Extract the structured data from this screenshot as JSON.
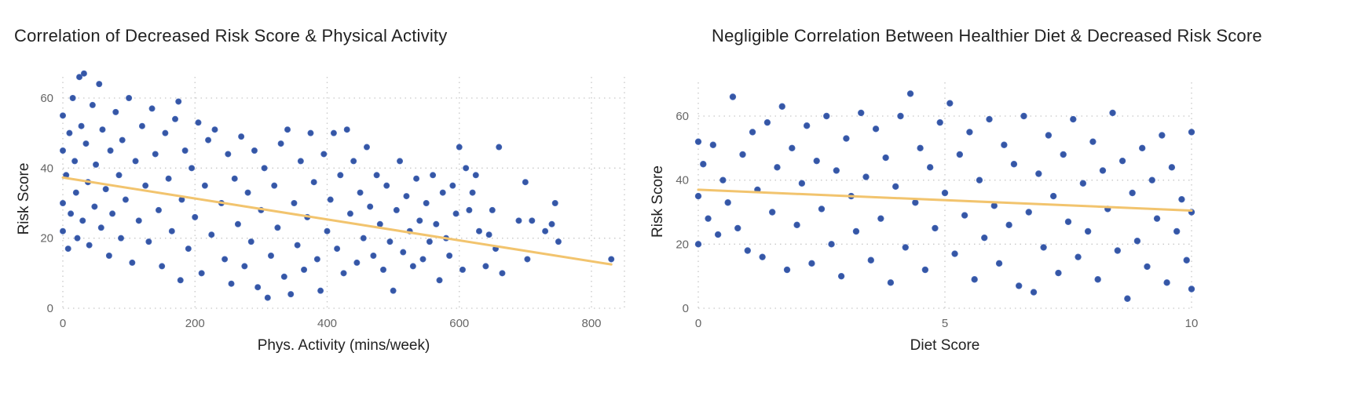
{
  "chart_data": [
    {
      "type": "scatter",
      "title": "Correlation of Decreased Risk Score & Physical Activity",
      "xlabel": "Phys. Activity (mins/week)",
      "ylabel": "Risk Score",
      "xlim": [
        0,
        830
      ],
      "ylim": [
        0,
        70
      ],
      "xticks": [
        0,
        200,
        400,
        600,
        800
      ],
      "yticks": [
        0,
        20,
        40,
        60
      ],
      "grid": true,
      "point_color": "#3556a5",
      "trend_color": "#f2c46e",
      "trendline": [
        [
          0,
          37.3
        ],
        [
          830,
          12.5
        ]
      ],
      "points": [
        [
          0,
          45
        ],
        [
          0,
          30
        ],
        [
          0,
          22
        ],
        [
          0,
          55
        ],
        [
          5,
          38
        ],
        [
          8,
          17
        ],
        [
          10,
          50
        ],
        [
          12,
          27
        ],
        [
          15,
          60
        ],
        [
          18,
          42
        ],
        [
          20,
          33
        ],
        [
          22,
          20
        ],
        [
          25,
          66
        ],
        [
          28,
          52
        ],
        [
          30,
          25
        ],
        [
          32,
          67
        ],
        [
          35,
          47
        ],
        [
          38,
          36
        ],
        [
          40,
          18
        ],
        [
          45,
          58
        ],
        [
          48,
          29
        ],
        [
          50,
          41
        ],
        [
          55,
          64
        ],
        [
          58,
          23
        ],
        [
          60,
          51
        ],
        [
          65,
          34
        ],
        [
          70,
          15
        ],
        [
          72,
          45
        ],
        [
          75,
          27
        ],
        [
          80,
          56
        ],
        [
          85,
          38
        ],
        [
          88,
          20
        ],
        [
          90,
          48
        ],
        [
          95,
          31
        ],
        [
          100,
          60
        ],
        [
          105,
          13
        ],
        [
          110,
          42
        ],
        [
          115,
          25
        ],
        [
          120,
          52
        ],
        [
          125,
          35
        ],
        [
          130,
          19
        ],
        [
          135,
          57
        ],
        [
          140,
          44
        ],
        [
          145,
          28
        ],
        [
          150,
          12
        ],
        [
          155,
          50
        ],
        [
          160,
          37
        ],
        [
          165,
          22
        ],
        [
          170,
          54
        ],
        [
          175,
          59
        ],
        [
          178,
          8
        ],
        [
          180,
          31
        ],
        [
          185,
          45
        ],
        [
          190,
          17
        ],
        [
          195,
          40
        ],
        [
          200,
          26
        ],
        [
          205,
          53
        ],
        [
          210,
          10
        ],
        [
          215,
          35
        ],
        [
          220,
          48
        ],
        [
          225,
          21
        ],
        [
          230,
          51
        ],
        [
          240,
          30
        ],
        [
          245,
          14
        ],
        [
          250,
          44
        ],
        [
          255,
          7
        ],
        [
          260,
          37
        ],
        [
          265,
          24
        ],
        [
          270,
          49
        ],
        [
          275,
          12
        ],
        [
          280,
          33
        ],
        [
          285,
          19
        ],
        [
          290,
          45
        ],
        [
          295,
          6
        ],
        [
          300,
          28
        ],
        [
          305,
          40
        ],
        [
          310,
          3
        ],
        [
          315,
          15
        ],
        [
          320,
          35
        ],
        [
          325,
          23
        ],
        [
          330,
          47
        ],
        [
          335,
          9
        ],
        [
          340,
          51
        ],
        [
          345,
          4
        ],
        [
          350,
          30
        ],
        [
          355,
          18
        ],
        [
          360,
          42
        ],
        [
          365,
          11
        ],
        [
          370,
          26
        ],
        [
          375,
          50
        ],
        [
          380,
          36
        ],
        [
          385,
          14
        ],
        [
          390,
          5
        ],
        [
          395,
          44
        ],
        [
          400,
          22
        ],
        [
          405,
          31
        ],
        [
          410,
          50
        ],
        [
          415,
          17
        ],
        [
          420,
          38
        ],
        [
          425,
          10
        ],
        [
          430,
          51
        ],
        [
          435,
          27
        ],
        [
          440,
          42
        ],
        [
          445,
          13
        ],
        [
          450,
          33
        ],
        [
          455,
          20
        ],
        [
          460,
          46
        ],
        [
          465,
          29
        ],
        [
          470,
          15
        ],
        [
          475,
          38
        ],
        [
          480,
          24
        ],
        [
          485,
          11
        ],
        [
          490,
          35
        ],
        [
          495,
          19
        ],
        [
          500,
          5
        ],
        [
          505,
          28
        ],
        [
          510,
          42
        ],
        [
          515,
          16
        ],
        [
          520,
          32
        ],
        [
          525,
          22
        ],
        [
          530,
          12
        ],
        [
          535,
          37
        ],
        [
          540,
          25
        ],
        [
          545,
          14
        ],
        [
          550,
          30
        ],
        [
          555,
          19
        ],
        [
          560,
          38
        ],
        [
          565,
          24
        ],
        [
          570,
          8
        ],
        [
          575,
          33
        ],
        [
          580,
          20
        ],
        [
          585,
          15
        ],
        [
          590,
          35
        ],
        [
          595,
          27
        ],
        [
          600,
          46
        ],
        [
          605,
          11
        ],
        [
          610,
          40
        ],
        [
          615,
          28
        ],
        [
          620,
          33
        ],
        [
          625,
          38
        ],
        [
          630,
          22
        ],
        [
          640,
          12
        ],
        [
          645,
          21
        ],
        [
          650,
          28
        ],
        [
          655,
          17
        ],
        [
          660,
          46
        ],
        [
          665,
          10
        ],
        [
          690,
          25
        ],
        [
          700,
          36
        ],
        [
          703,
          14
        ],
        [
          710,
          25
        ],
        [
          730,
          22
        ],
        [
          740,
          24
        ],
        [
          745,
          30
        ],
        [
          750,
          19
        ],
        [
          830,
          14
        ]
      ]
    },
    {
      "type": "scatter",
      "title": "Negligible Correlation Between Healthier Diet & Decreased Risk Score",
      "xlabel": "Diet Score",
      "ylabel": "Risk Score",
      "xlim": [
        0,
        10
      ],
      "ylim": [
        0,
        70
      ],
      "xticks": [
        0,
        5,
        10
      ],
      "yticks": [
        0,
        20,
        40,
        60
      ],
      "grid": true,
      "point_color": "#3556a5",
      "trend_color": "#f2c46e",
      "trendline": [
        [
          0,
          37
        ],
        [
          10,
          30.5
        ]
      ],
      "points": [
        [
          0,
          52
        ],
        [
          0,
          20
        ],
        [
          0,
          35
        ],
        [
          0.1,
          45
        ],
        [
          0.2,
          28
        ],
        [
          0.3,
          51
        ],
        [
          0.4,
          23
        ],
        [
          0.5,
          40
        ],
        [
          0.6,
          33
        ],
        [
          0.7,
          66
        ],
        [
          0.8,
          25
        ],
        [
          0.9,
          48
        ],
        [
          1.0,
          18
        ],
        [
          1.1,
          55
        ],
        [
          1.2,
          37
        ],
        [
          1.3,
          16
        ],
        [
          1.4,
          58
        ],
        [
          1.5,
          30
        ],
        [
          1.6,
          44
        ],
        [
          1.7,
          63
        ],
        [
          1.8,
          12
        ],
        [
          1.9,
          50
        ],
        [
          2.0,
          26
        ],
        [
          2.1,
          39
        ],
        [
          2.2,
          57
        ],
        [
          2.3,
          14
        ],
        [
          2.4,
          46
        ],
        [
          2.5,
          31
        ],
        [
          2.6,
          60
        ],
        [
          2.7,
          20
        ],
        [
          2.8,
          43
        ],
        [
          2.9,
          10
        ],
        [
          3.0,
          53
        ],
        [
          3.1,
          35
        ],
        [
          3.2,
          24
        ],
        [
          3.3,
          61
        ],
        [
          3.4,
          41
        ],
        [
          3.5,
          15
        ],
        [
          3.6,
          56
        ],
        [
          3.7,
          28
        ],
        [
          3.8,
          47
        ],
        [
          3.9,
          8
        ],
        [
          4.0,
          38
        ],
        [
          4.1,
          60
        ],
        [
          4.2,
          19
        ],
        [
          4.3,
          67
        ],
        [
          4.4,
          33
        ],
        [
          4.5,
          50
        ],
        [
          4.6,
          12
        ],
        [
          4.7,
          44
        ],
        [
          4.8,
          25
        ],
        [
          4.9,
          58
        ],
        [
          5.0,
          36
        ],
        [
          5.1,
          64
        ],
        [
          5.2,
          17
        ],
        [
          5.3,
          48
        ],
        [
          5.4,
          29
        ],
        [
          5.5,
          55
        ],
        [
          5.6,
          9
        ],
        [
          5.7,
          40
        ],
        [
          5.8,
          22
        ],
        [
          5.9,
          59
        ],
        [
          6.0,
          32
        ],
        [
          6.1,
          14
        ],
        [
          6.2,
          51
        ],
        [
          6.3,
          26
        ],
        [
          6.4,
          45
        ],
        [
          6.5,
          7
        ],
        [
          6.6,
          60
        ],
        [
          6.7,
          30
        ],
        [
          6.8,
          5
        ],
        [
          6.9,
          42
        ],
        [
          7.0,
          19
        ],
        [
          7.1,
          54
        ],
        [
          7.2,
          35
        ],
        [
          7.3,
          11
        ],
        [
          7.4,
          48
        ],
        [
          7.5,
          27
        ],
        [
          7.6,
          59
        ],
        [
          7.7,
          16
        ],
        [
          7.8,
          39
        ],
        [
          7.9,
          24
        ],
        [
          8.0,
          52
        ],
        [
          8.1,
          9
        ],
        [
          8.2,
          43
        ],
        [
          8.3,
          31
        ],
        [
          8.4,
          61
        ],
        [
          8.5,
          18
        ],
        [
          8.6,
          46
        ],
        [
          8.7,
          3
        ],
        [
          8.8,
          36
        ],
        [
          8.9,
          21
        ],
        [
          9.0,
          50
        ],
        [
          9.1,
          13
        ],
        [
          9.2,
          40
        ],
        [
          9.3,
          28
        ],
        [
          9.4,
          54
        ],
        [
          9.5,
          8
        ],
        [
          9.6,
          44
        ],
        [
          9.7,
          24
        ],
        [
          9.8,
          34
        ],
        [
          9.9,
          15
        ],
        [
          10,
          55
        ],
        [
          10,
          30
        ],
        [
          10,
          6
        ]
      ]
    }
  ]
}
